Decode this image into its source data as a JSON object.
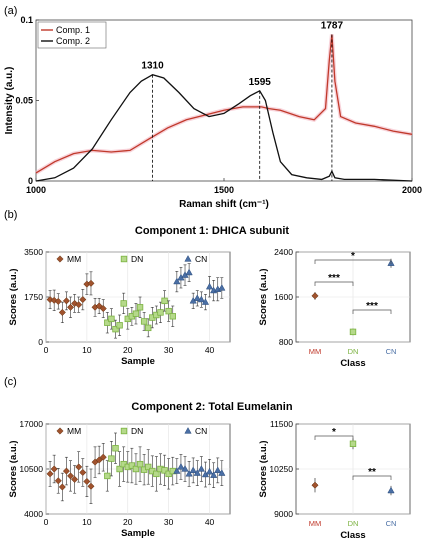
{
  "chart_data": [
    {
      "type": "line",
      "panel_label": "(a)",
      "xlabel": "Raman shift (cm⁻¹)",
      "ylabel": "Intensity (a.u.)",
      "xlim": [
        1000,
        2000
      ],
      "ylim": [
        0,
        0.1
      ],
      "x_ticks": [
        "1000",
        "1500",
        "2000"
      ],
      "y_ticks": [
        "0",
        "0.05",
        "0.1"
      ],
      "legend": [
        "Comp. 1",
        "Comp. 2"
      ],
      "legend_position": "top-left",
      "annotations": [
        {
          "label": "1310",
          "x": 1310
        },
        {
          "label": "1595",
          "x": 1595
        },
        {
          "label": "1787",
          "x": 1787
        }
      ],
      "series": [
        {
          "name": "Comp. 1",
          "color": "#c0392b",
          "x": [
            1000,
            1050,
            1100,
            1150,
            1200,
            1250,
            1300,
            1350,
            1400,
            1450,
            1500,
            1550,
            1580,
            1600,
            1620,
            1650,
            1700,
            1740,
            1770,
            1780,
            1787,
            1795,
            1810,
            1850,
            1900,
            1950,
            2000
          ],
          "y": [
            0.005,
            0.012,
            0.017,
            0.019,
            0.018,
            0.019,
            0.026,
            0.033,
            0.038,
            0.041,
            0.044,
            0.046,
            0.046,
            0.046,
            0.045,
            0.044,
            0.04,
            0.038,
            0.045,
            0.075,
            0.091,
            0.062,
            0.04,
            0.036,
            0.034,
            0.031,
            0.029
          ]
        },
        {
          "name": "Comp. 2",
          "color": "#111111",
          "x": [
            1000,
            1050,
            1100,
            1150,
            1200,
            1250,
            1280,
            1310,
            1340,
            1380,
            1420,
            1460,
            1500,
            1540,
            1570,
            1595,
            1610,
            1630,
            1650,
            1680,
            1720,
            1760,
            1780,
            1787,
            1795,
            1820,
            1900,
            2000
          ],
          "y": [
            0.0,
            0.002,
            0.008,
            0.02,
            0.038,
            0.055,
            0.062,
            0.066,
            0.064,
            0.055,
            0.045,
            0.04,
            0.042,
            0.048,
            0.053,
            0.056,
            0.05,
            0.03,
            0.012,
            0.004,
            0.002,
            0.001,
            0.003,
            0.006,
            0.002,
            0.001,
            0.001,
            0.0
          ]
        }
      ]
    },
    {
      "type": "scatter",
      "panel_label": "(b)",
      "title": "Component 1: DHICA subunit",
      "xlabel": "Sample",
      "ylabel": "Scores (a.u.)",
      "xlim": [
        0,
        45
      ],
      "ylim": [
        0,
        3500
      ],
      "x_ticks": [
        "0",
        "10",
        "20",
        "30",
        "40"
      ],
      "y_ticks": [
        "0",
        "1750",
        "3500"
      ],
      "legend": [
        "MM",
        "DN",
        "CN"
      ],
      "legend_position": "top",
      "groups": [
        {
          "name": "MM",
          "color": "#a0522d",
          "x": [
            1,
            2,
            3,
            4,
            5,
            6,
            7,
            8,
            9,
            10,
            11,
            12,
            13,
            14
          ],
          "y": [
            1650,
            1620,
            1580,
            1150,
            1600,
            1350,
            1500,
            1450,
            1650,
            2250,
            2280,
            1350,
            1400,
            1300
          ],
          "err": [
            350,
            400,
            300,
            400,
            350,
            400,
            350,
            300,
            400,
            400,
            450,
            350,
            300,
            350
          ]
        },
        {
          "name": "DN",
          "color": "#7cb342",
          "x": [
            15,
            16,
            17,
            18,
            19,
            20,
            21,
            22,
            23,
            24,
            25,
            26,
            27,
            28,
            29,
            30,
            31
          ],
          "y": [
            750,
            900,
            500,
            650,
            1500,
            900,
            1000,
            1100,
            1350,
            800,
            550,
            950,
            1050,
            1150,
            1600,
            1200,
            1000
          ],
          "err": [
            400,
            400,
            350,
            400,
            400,
            400,
            350,
            400,
            400,
            350,
            350,
            400,
            350,
            400,
            400,
            400,
            400
          ]
        },
        {
          "name": "CN",
          "color": "#4a6fa5",
          "x": [
            32,
            33,
            34,
            35,
            36,
            37,
            38,
            39,
            40,
            41,
            42,
            43
          ],
          "y": [
            2350,
            2500,
            2600,
            2700,
            1600,
            1700,
            1650,
            1550,
            2150,
            2000,
            2050,
            2100
          ],
          "err": [
            400,
            400,
            400,
            350,
            300,
            300,
            300,
            300,
            400,
            400,
            450,
            400
          ]
        }
      ]
    },
    {
      "type": "scatter",
      "xlabel": "Class",
      "ylabel": "Scores (a.u.)",
      "ylim": [
        800,
        2400
      ],
      "y_ticks": [
        "800",
        "1600",
        "2400"
      ],
      "categories": [
        "MM",
        "DN",
        "CN"
      ],
      "category_colors": [
        "#c0392b",
        "#7cb342",
        "#4a6fa5"
      ],
      "values": [
        1620,
        980,
        2200
      ],
      "err": [
        70,
        60,
        80
      ],
      "significance": [
        {
          "from": "MM",
          "to": "CN",
          "label": "*"
        },
        {
          "from": "MM",
          "to": "DN",
          "label": "***"
        },
        {
          "from": "DN",
          "to": "CN",
          "label": "***"
        }
      ]
    },
    {
      "type": "scatter",
      "panel_label": "(c)",
      "title": "Component 2: Total Eumelanin",
      "xlabel": "Sample",
      "ylabel": "Scores (a.u.)",
      "xlim": [
        0,
        45
      ],
      "ylim": [
        4000,
        17000
      ],
      "x_ticks": [
        "0",
        "10",
        "20",
        "30",
        "40"
      ],
      "y_ticks": [
        "4000",
        "10500",
        "17000"
      ],
      "legend": [
        "MM",
        "DN",
        "CN"
      ],
      "legend_position": "top",
      "groups": [
        {
          "name": "MM",
          "color": "#a0522d",
          "x": [
            1,
            2,
            3,
            4,
            5,
            6,
            7,
            8,
            9,
            10,
            11,
            12,
            13,
            14
          ],
          "y": [
            9800,
            10500,
            8800,
            7900,
            10200,
            9500,
            9000,
            10800,
            10000,
            8700,
            8000,
            11500,
            11800,
            12200
          ],
          "err": [
            1800,
            2000,
            1800,
            2000,
            2000,
            2200,
            2000,
            2200,
            2000,
            2200,
            2500,
            2200,
            2000,
            2000
          ]
        },
        {
          "name": "DN",
          "color": "#7cb342",
          "x": [
            15,
            16,
            17,
            18,
            19,
            20,
            21,
            22,
            23,
            24,
            25,
            26,
            27,
            28,
            29,
            30,
            31
          ],
          "y": [
            9500,
            12000,
            13500,
            10500,
            11200,
            10800,
            11000,
            10500,
            11200,
            10400,
            10800,
            10200,
            9800,
            10500,
            10300,
            9800,
            10200
          ],
          "err": [
            2200,
            2500,
            2200,
            2500,
            2500,
            2200,
            2500,
            2200,
            2500,
            2200,
            2500,
            2200,
            2500,
            2200,
            2200,
            2200,
            2000
          ]
        },
        {
          "name": "CN",
          "color": "#4a6fa5",
          "x": [
            32,
            33,
            34,
            35,
            36,
            37,
            38,
            39,
            40,
            41,
            42,
            43
          ],
          "y": [
            10200,
            10800,
            10500,
            9800,
            10300,
            9900,
            10500,
            9700,
            10100,
            9600,
            10300,
            9900
          ],
          "err": [
            1800,
            1800,
            1800,
            1800,
            1800,
            1800,
            1800,
            1800,
            1800,
            1800,
            1800,
            1800
          ]
        }
      ]
    },
    {
      "type": "scatter",
      "xlabel": "Class",
      "ylabel": "Scores (a.u.)",
      "ylim": [
        9000,
        11500
      ],
      "y_ticks": [
        "9000",
        "10250",
        "11500"
      ],
      "categories": [
        "MM",
        "DN",
        "CN"
      ],
      "category_colors": [
        "#c0392b",
        "#7cb342",
        "#4a6fa5"
      ],
      "values": [
        9800,
        10950,
        9650
      ],
      "err": [
        200,
        150,
        130
      ],
      "significance": [
        {
          "from": "MM",
          "to": "DN",
          "label": "*"
        },
        {
          "from": "DN",
          "to": "CN",
          "label": "**"
        }
      ]
    }
  ]
}
